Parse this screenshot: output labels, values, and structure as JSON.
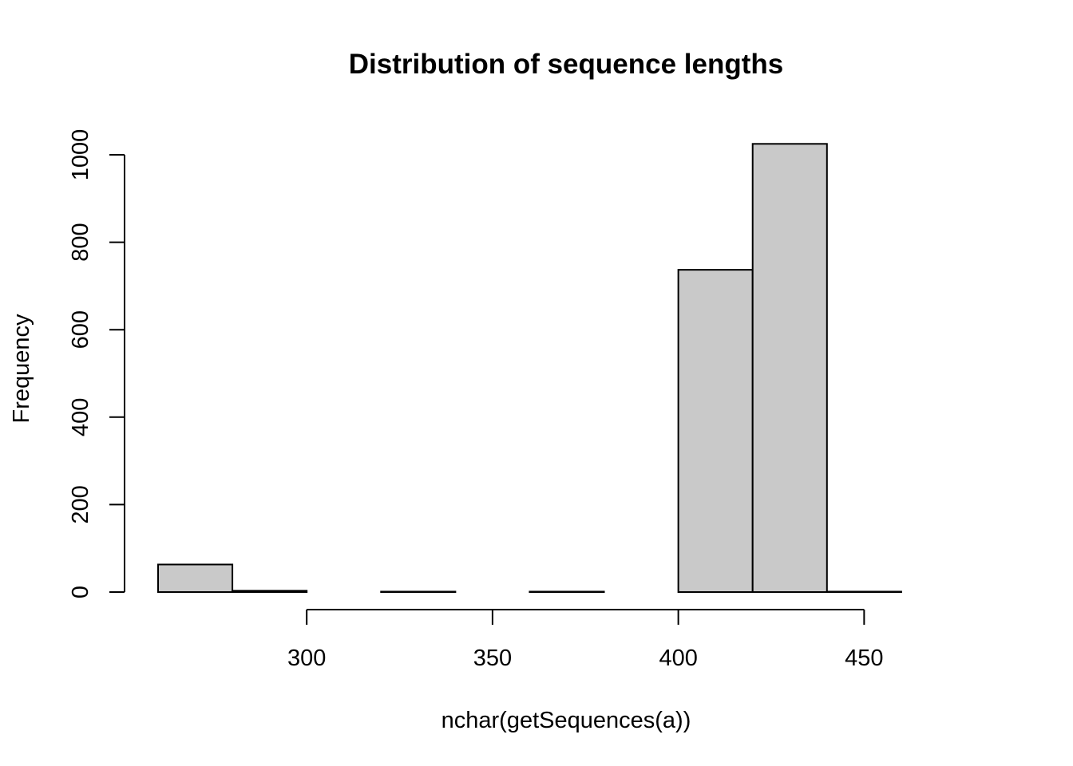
{
  "chart_data": {
    "type": "bar",
    "title": "Distribution of sequence lengths",
    "xlabel": "nchar(getSequences(a))",
    "ylabel": "Frequency",
    "bins": [
      {
        "start": 260,
        "end": 280,
        "count": 63
      },
      {
        "start": 280,
        "end": 300,
        "count": 3
      },
      {
        "start": 300,
        "end": 320,
        "count": 0
      },
      {
        "start": 320,
        "end": 340,
        "count": 1
      },
      {
        "start": 340,
        "end": 360,
        "count": 0
      },
      {
        "start": 360,
        "end": 380,
        "count": 1
      },
      {
        "start": 380,
        "end": 400,
        "count": 0
      },
      {
        "start": 400,
        "end": 420,
        "count": 737
      },
      {
        "start": 420,
        "end": 440,
        "count": 1025
      },
      {
        "start": 440,
        "end": 460,
        "count": 1
      },
      {
        "start": 460,
        "end": 480,
        "count": 0
      }
    ],
    "xlim": [
      260,
      480
    ],
    "ylim": [
      0,
      1025
    ],
    "x_ticks": [
      300,
      350,
      400,
      450
    ],
    "x_tick_labels": [
      "300",
      "350",
      "400",
      "450"
    ],
    "y_ticks": [
      0,
      200,
      400,
      600,
      800,
      1000
    ],
    "y_tick_labels": [
      "0",
      "200",
      "400",
      "600",
      "800",
      "1000"
    ],
    "bar_fill": "#c9c9c9",
    "bar_stroke": "#000000",
    "grid": false,
    "legend": "none"
  }
}
